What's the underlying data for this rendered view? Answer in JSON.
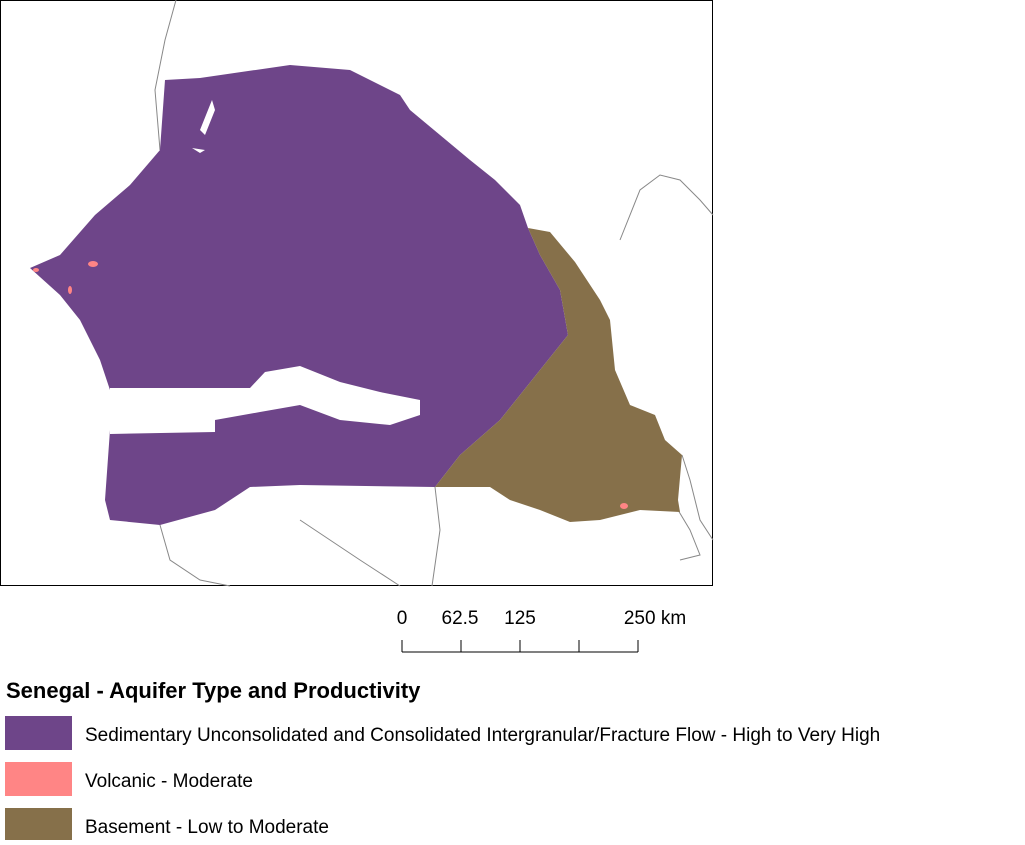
{
  "scale_bar": {
    "labels": [
      "0",
      "62.5",
      "125",
      "250 km"
    ]
  },
  "legend": {
    "title": "Senegal - Aquifer Type and Productivity",
    "items": [
      {
        "label": "Sedimentary Unconsolidated and Consolidated Intergranular/Fracture Flow - High to Very High",
        "color": "#6e4589"
      },
      {
        "label": "Volcanic - Moderate",
        "color": "#ff8585"
      },
      {
        "label": "Basement - Low to Moderate",
        "color": "#86704a"
      }
    ]
  }
}
